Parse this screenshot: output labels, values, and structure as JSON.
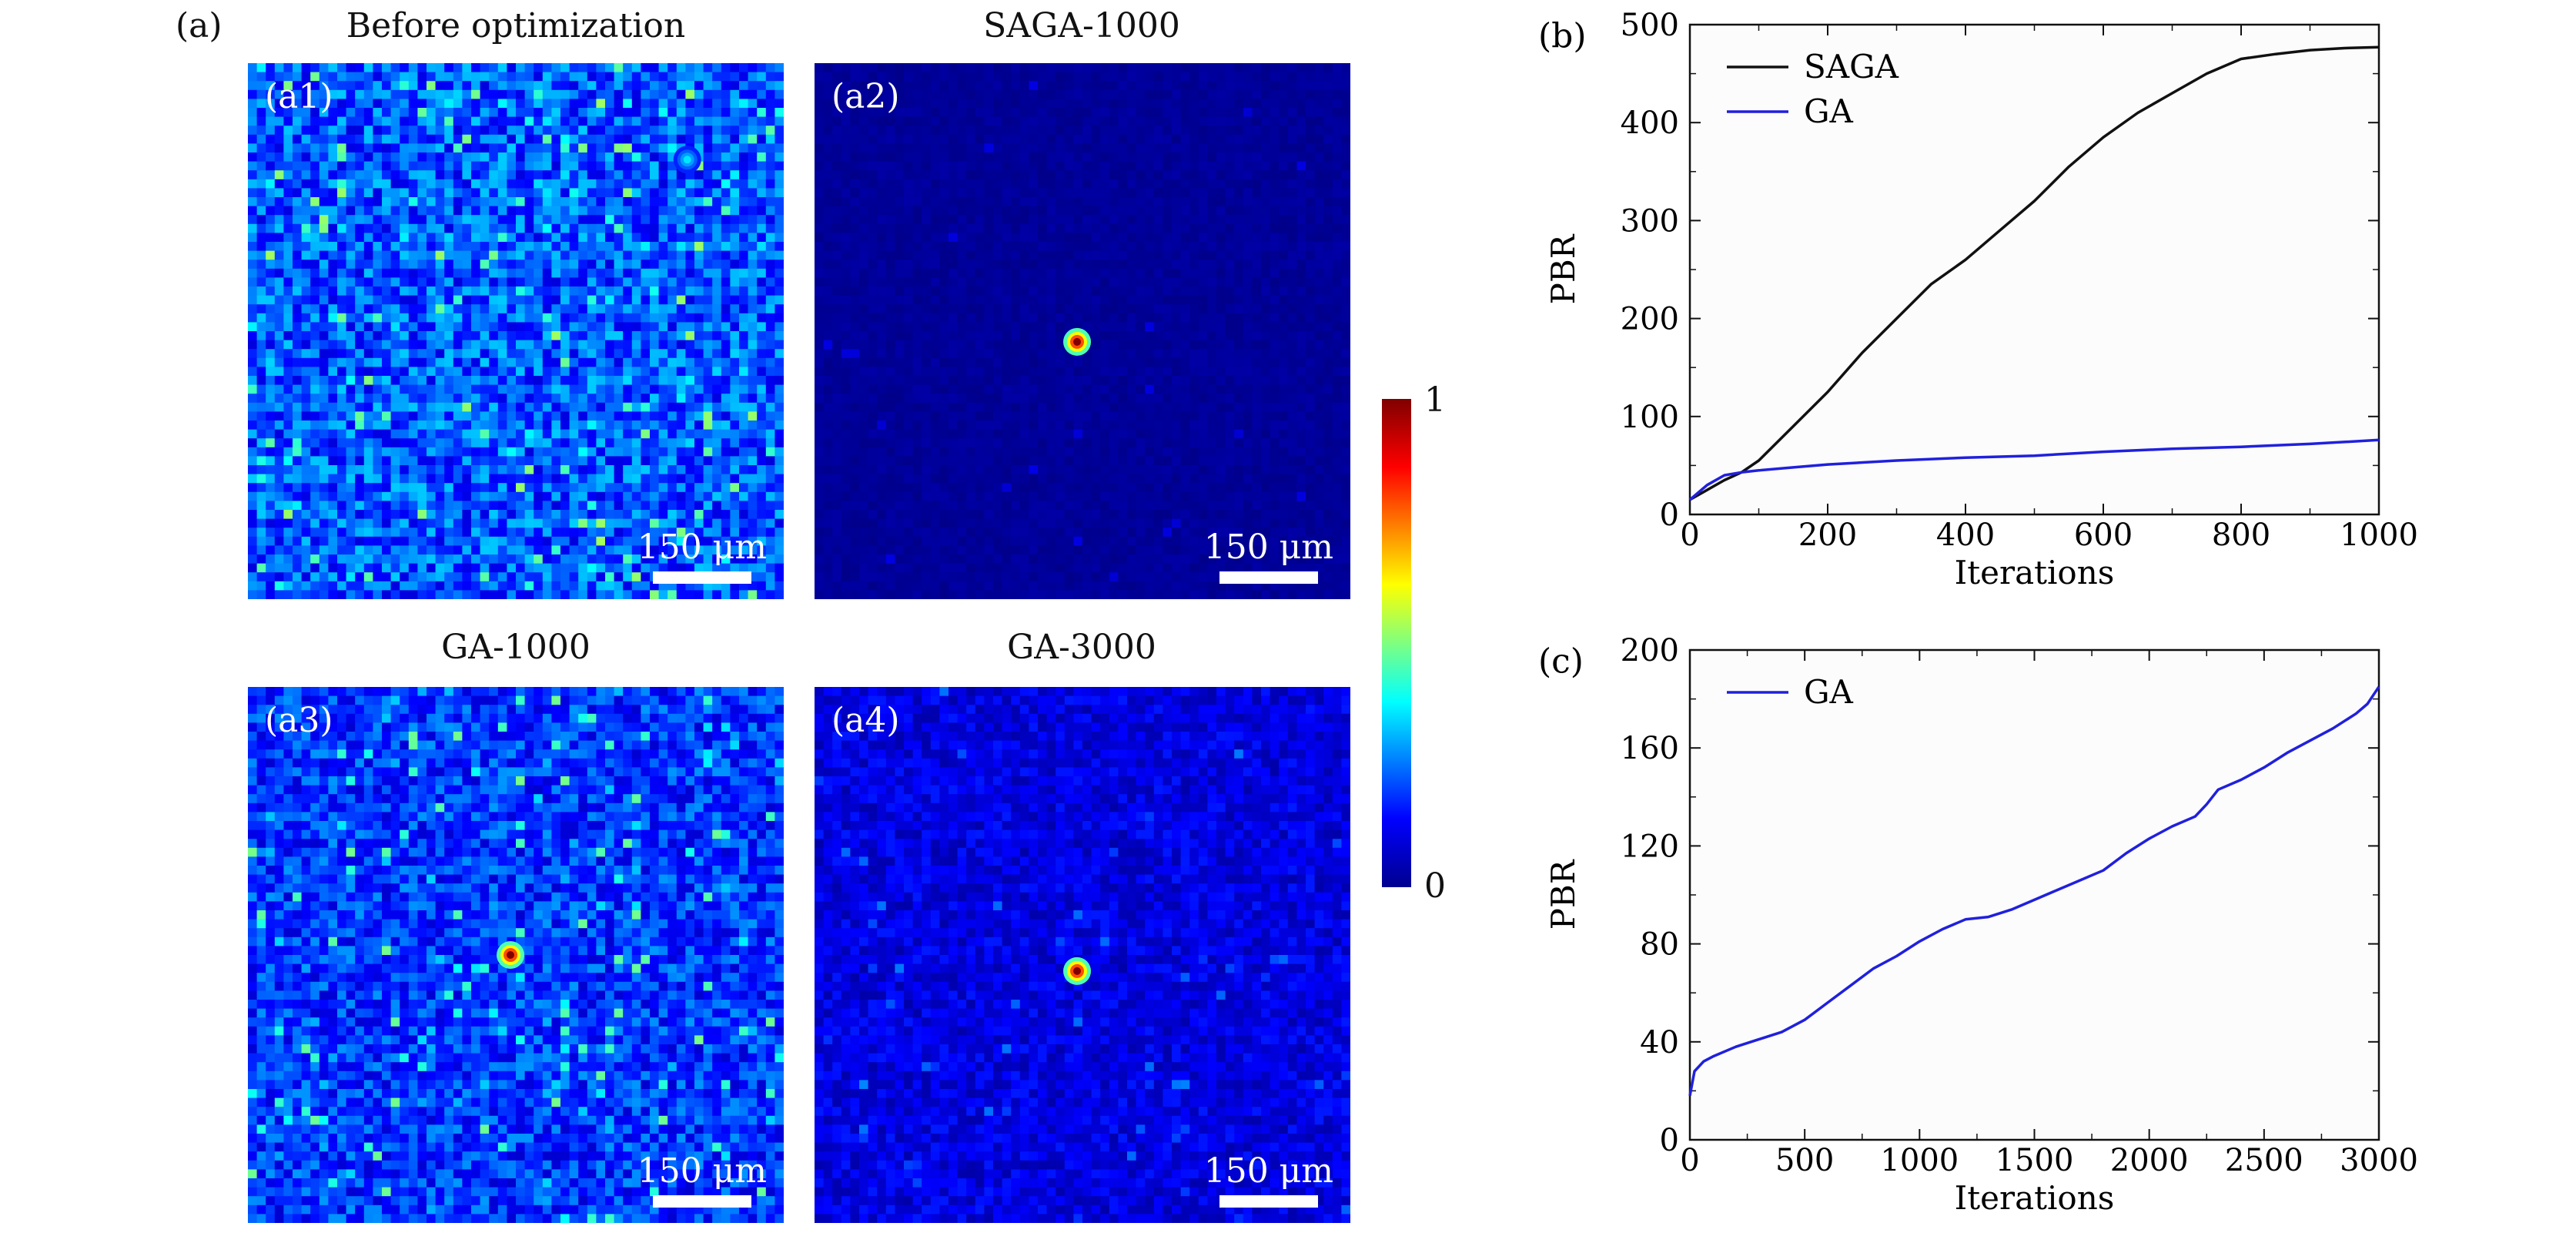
{
  "figure": {
    "panel_a_label": "(a)",
    "colorbar": {
      "max_label": "1",
      "min_label": "0",
      "colormap": [
        "#00008f",
        "#0000ff",
        "#00ffff",
        "#ffff00",
        "#ff0000",
        "#800000"
      ]
    },
    "speckle_images": [
      {
        "title": "Before optimization",
        "label": "(a1)",
        "scalebar": "150 μm",
        "focus_intensity": 0.35,
        "background_intensity": 0.26,
        "speckle_density": "high"
      },
      {
        "title": "SAGA-1000",
        "label": "(a2)",
        "scalebar": "150 μm",
        "focus_intensity": 1.0,
        "background_intensity": 0.03,
        "speckle_density": "very low"
      },
      {
        "title": "GA-1000",
        "label": "(a3)",
        "scalebar": "150 μm",
        "focus_intensity": 1.0,
        "background_intensity": 0.22,
        "speckle_density": "high"
      },
      {
        "title": "GA-3000",
        "label": "(a4)",
        "scalebar": "150 μm",
        "focus_intensity": 1.0,
        "background_intensity": 0.12,
        "speckle_density": "low"
      }
    ]
  },
  "chart_data": [
    {
      "panel_label": "(b)",
      "type": "line",
      "xlabel": "Iterations",
      "ylabel": "PBR",
      "xlim": [
        0,
        1000
      ],
      "ylim": [
        0,
        500
      ],
      "xticks": [
        0,
        200,
        400,
        600,
        800,
        1000
      ],
      "yticks": [
        0,
        100,
        200,
        300,
        400,
        500
      ],
      "legend_position": "top-left",
      "series": [
        {
          "name": "SAGA",
          "color": "#111111",
          "x": [
            0,
            25,
            50,
            75,
            100,
            150,
            200,
            250,
            300,
            350,
            400,
            450,
            500,
            550,
            600,
            650,
            700,
            750,
            800,
            850,
            900,
            950,
            1000
          ],
          "y": [
            15,
            25,
            35,
            43,
            55,
            90,
            125,
            165,
            200,
            235,
            260,
            290,
            320,
            355,
            385,
            410,
            430,
            450,
            465,
            470,
            474,
            476,
            477
          ]
        },
        {
          "name": "GA",
          "color": "#2020dd",
          "x": [
            0,
            25,
            50,
            75,
            100,
            150,
            200,
            300,
            400,
            500,
            600,
            700,
            800,
            900,
            1000
          ],
          "y": [
            15,
            30,
            40,
            43,
            45,
            48,
            51,
            55,
            58,
            60,
            64,
            67,
            69,
            72,
            76
          ]
        }
      ]
    },
    {
      "panel_label": "(c)",
      "type": "line",
      "xlabel": "Iterations",
      "ylabel": "PBR",
      "xlim": [
        0,
        3000
      ],
      "ylim": [
        0,
        200
      ],
      "xticks": [
        0,
        500,
        1000,
        1500,
        2000,
        2500,
        3000
      ],
      "yticks": [
        0,
        40,
        80,
        120,
        160,
        200
      ],
      "legend_position": "top-left",
      "series": [
        {
          "name": "GA",
          "color": "#2020dd",
          "x": [
            0,
            20,
            60,
            100,
            200,
            300,
            400,
            500,
            600,
            700,
            800,
            900,
            1000,
            1100,
            1200,
            1300,
            1400,
            1500,
            1600,
            1700,
            1800,
            1900,
            2000,
            2100,
            2200,
            2250,
            2300,
            2400,
            2500,
            2600,
            2700,
            2800,
            2900,
            2950,
            3000
          ],
          "y": [
            18,
            28,
            32,
            34,
            38,
            41,
            44,
            49,
            56,
            63,
            70,
            75,
            81,
            86,
            90,
            91,
            94,
            98,
            102,
            106,
            110,
            117,
            123,
            128,
            132,
            137,
            143,
            147,
            152,
            158,
            163,
            168,
            174,
            178,
            185
          ]
        }
      ]
    }
  ]
}
